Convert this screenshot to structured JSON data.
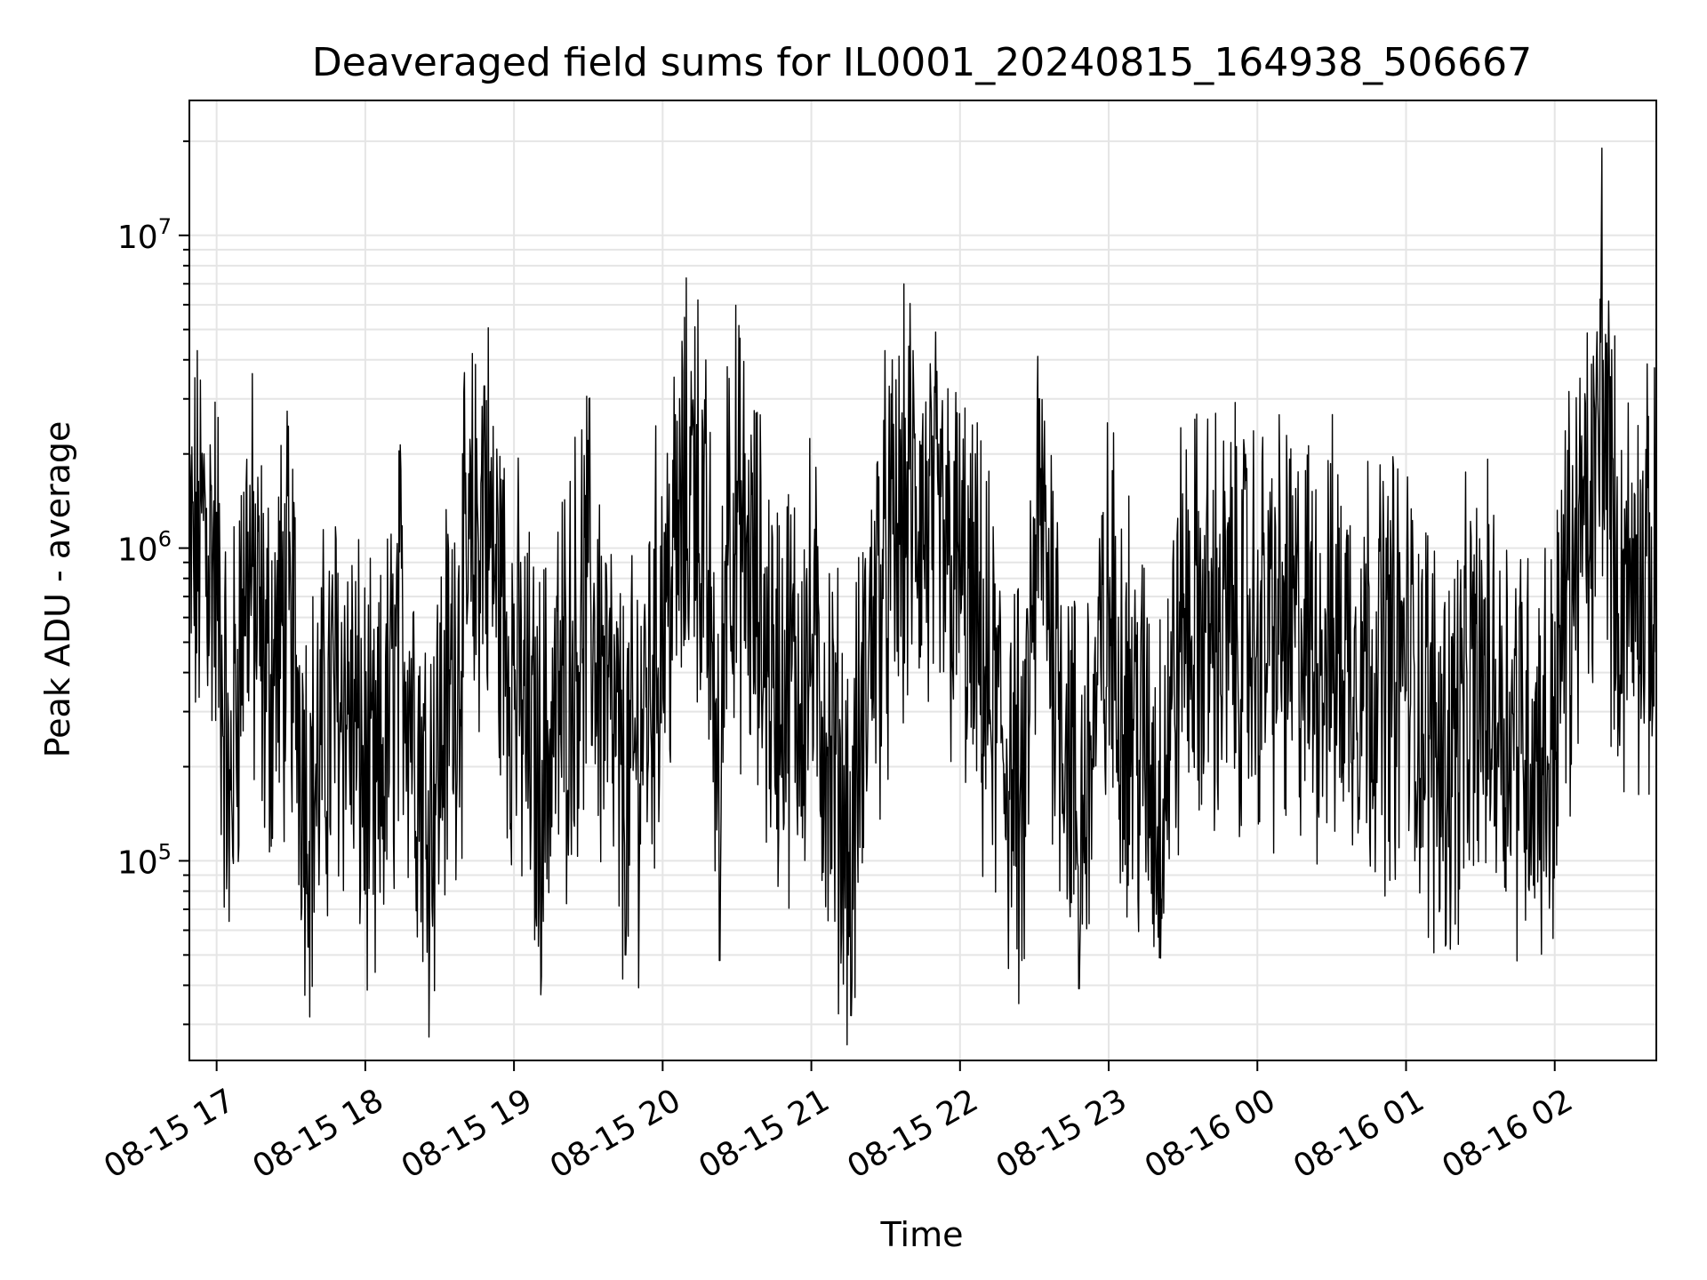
{
  "chart_data": {
    "type": "line",
    "title": "Deaveraged field sums for IL0001_20240815_164938_506667",
    "xlabel": "Time",
    "ylabel": "Peak ADU - average",
    "yscale": "log",
    "xlim": [
      "2024-08-15 16:49",
      "2024-08-16 02:41"
    ],
    "ylim": [
      23000,
      27000000
    ],
    "grid": true,
    "x_ticks": [
      "08-15 17",
      "08-15 18",
      "08-15 19",
      "08-15 20",
      "08-15 21",
      "08-15 22",
      "08-15 23",
      "08-16 00",
      "08-16 01",
      "08-16 02"
    ],
    "y_ticks": [
      {
        "base": "10",
        "exp": "5",
        "value": 100000
      },
      {
        "base": "10",
        "exp": "6",
        "value": 1000000
      },
      {
        "base": "10",
        "exp": "7",
        "value": 10000000
      }
    ],
    "line_color": "#000000",
    "series": [
      {
        "points": [
          [
            "2024-08-15 16:49",
            1200000
          ],
          [
            "2024-08-15 16:55",
            2000000
          ],
          [
            "2024-08-15 17:00",
            1300000
          ],
          [
            "2024-08-15 17:05",
            64000
          ],
          [
            "2024-08-15 17:12",
            1600000
          ],
          [
            "2024-08-15 17:20",
            300000
          ],
          [
            "2024-08-15 17:30",
            700000
          ],
          [
            "2024-08-15 17:37",
            53000
          ],
          [
            "2024-08-15 17:50",
            320000
          ],
          [
            "2024-08-15 18:04",
            44000
          ],
          [
            "2024-08-15 18:15",
            600000
          ],
          [
            "2024-08-15 18:25",
            51000
          ],
          [
            "2024-08-15 18:48",
            3300000
          ],
          [
            "2024-08-15 18:55",
            700000
          ],
          [
            "2024-08-15 19:10",
            74000
          ],
          [
            "2024-08-15 19:30",
            900000
          ],
          [
            "2024-08-15 19:45",
            50000
          ],
          [
            "2024-08-15 20:00",
            700000
          ],
          [
            "2024-08-15 20:13",
            5100000
          ],
          [
            "2024-08-15 20:20",
            500000
          ],
          [
            "2024-08-15 20:23",
            48000
          ],
          [
            "2024-08-15 20:26",
            3800000
          ],
          [
            "2024-08-15 20:45",
            300000
          ],
          [
            "2024-08-15 20:55",
            300000
          ],
          [
            "2024-08-15 21:00",
            400000
          ],
          [
            "2024-08-15 21:16",
            32000
          ],
          [
            "2024-08-15 21:25",
            700000
          ],
          [
            "2024-08-15 21:40",
            3200000
          ],
          [
            "2024-08-15 22:00",
            1000000
          ],
          [
            "2024-08-15 22:25",
            48000
          ],
          [
            "2024-08-15 22:32",
            3000000
          ],
          [
            "2024-08-15 22:48",
            39000
          ],
          [
            "2024-08-15 23:00",
            600000
          ],
          [
            "2024-08-15 23:20",
            57000
          ],
          [
            "2024-08-15 23:30",
            600000
          ],
          [
            "2024-08-16 00:00",
            600000
          ],
          [
            "2024-08-16 00:30",
            450000
          ],
          [
            "2024-08-16 01:00",
            350000
          ],
          [
            "2024-08-16 01:15",
            100000
          ],
          [
            "2024-08-16 01:30",
            280000
          ],
          [
            "2024-08-16 01:58",
            100000
          ],
          [
            "2024-08-16 02:05",
            900000
          ],
          [
            "2024-08-16 02:10",
            1500000
          ],
          [
            "2024-08-16 02:16",
            2800000
          ],
          [
            "2024-08-16 02:19",
            19000000
          ],
          [
            "2024-08-16 02:25",
            1000000
          ],
          [
            "2024-08-16 02:33",
            1100000
          ],
          [
            "2024-08-16 02:41",
            800000
          ]
        ]
      }
    ]
  }
}
